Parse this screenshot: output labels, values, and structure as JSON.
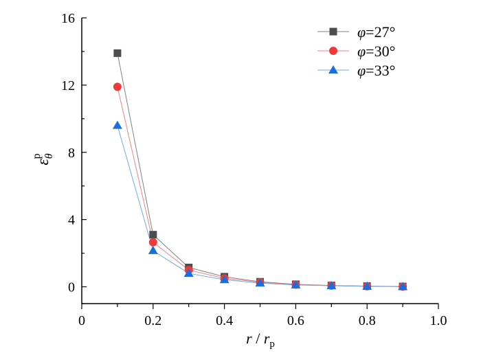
{
  "chart_data": {
    "type": "line",
    "title": "",
    "xlabel": "r / r_p",
    "xlabel_parts": {
      "main": "r",
      "slash": " / ",
      "var": "r",
      "sub": "p"
    },
    "ylabel_parts": {
      "main": "ε",
      "sub": "θ",
      "sup": "p"
    },
    "xlim": [
      0,
      1.0
    ],
    "ylim": [
      -1,
      16
    ],
    "xticks": [
      0,
      0.2,
      0.4,
      0.6,
      0.8,
      1.0
    ],
    "xtick_labels": [
      "0",
      "0.2",
      "0.4",
      "0.6",
      "0.8",
      "1.0"
    ],
    "yticks": [
      0,
      4,
      8,
      12,
      16
    ],
    "ytick_labels": [
      "0",
      "4",
      "8",
      "12",
      "16"
    ],
    "grid": false,
    "legend_position": "top-right",
    "x": [
      0.1,
      0.2,
      0.3,
      0.4,
      0.5,
      0.6,
      0.7,
      0.8,
      0.9
    ],
    "series": [
      {
        "name": "φ=27°",
        "label_var": "φ",
        "label_rest": "=27°",
        "color": "#4d4d4d",
        "line_color": "#808080",
        "marker": "square",
        "values": [
          13.9,
          3.1,
          1.15,
          0.6,
          0.3,
          0.15,
          0.08,
          0.04,
          0.02
        ]
      },
      {
        "name": "φ=30°",
        "label_var": "φ",
        "label_rest": "=30°",
        "color": "#f03a3a",
        "line_color": "#f08080",
        "marker": "circle",
        "values": [
          11.9,
          2.65,
          1.0,
          0.5,
          0.27,
          0.13,
          0.07,
          0.03,
          0.01
        ]
      },
      {
        "name": "φ=33°",
        "label_var": "φ",
        "label_rest": "=33°",
        "color": "#1a6fdf",
        "line_color": "#6fa8f0",
        "marker": "triangle",
        "values": [
          9.6,
          2.15,
          0.8,
          0.42,
          0.22,
          0.11,
          0.06,
          0.03,
          0.01
        ]
      }
    ]
  }
}
